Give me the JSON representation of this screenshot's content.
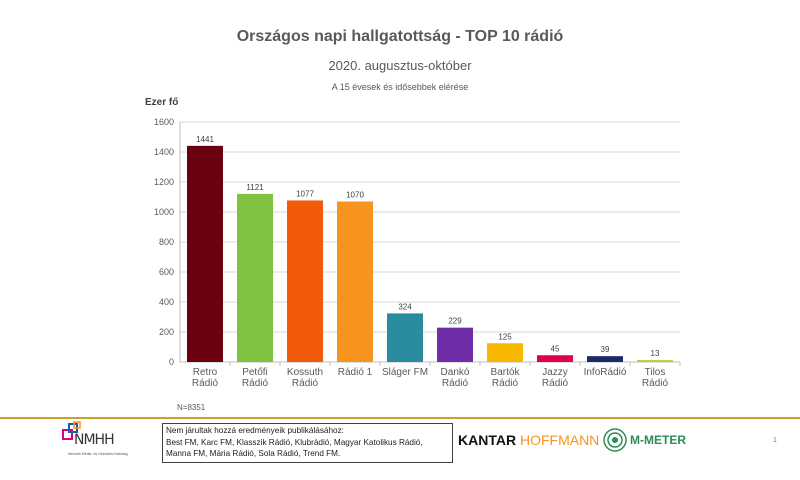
{
  "header": {
    "title": "Országos napi hallgatottság - TOP 10 rádió",
    "subtitle": "2020. augusztus-október",
    "note": "A 15 évesek és idősebbek elérése"
  },
  "chart_data": {
    "type": "bar",
    "title": "Országos napi hallgatottság - TOP 10 rádió",
    "subtitle": "2020. augusztus-október",
    "ylabel": "Ezer fő",
    "ylim": [
      0,
      1600
    ],
    "yticks": [
      "0",
      "200",
      "400",
      "600",
      "800",
      "1000",
      "1200",
      "1400",
      "1600"
    ],
    "grid": true,
    "categories": [
      [
        "Retro",
        "Rádió"
      ],
      [
        "Petőfi",
        "Rádió"
      ],
      [
        "Kossuth",
        "Rádió"
      ],
      [
        "Rádió 1"
      ],
      [
        "Sláger FM"
      ],
      [
        "Dankó",
        "Rádió"
      ],
      [
        "Bartók",
        "Rádió"
      ],
      [
        "Jazzy",
        "Rádió"
      ],
      [
        "InfoRádió"
      ],
      [
        "Tilos",
        "Rádió"
      ]
    ],
    "values": [
      1441,
      1121,
      1077,
      1070,
      324,
      229,
      125,
      45,
      39,
      13
    ],
    "value_labels": [
      "1441",
      "1121",
      "1077",
      "1070",
      "324",
      "229",
      "125",
      "45",
      "39",
      "13"
    ],
    "colors": [
      "#6b0010",
      "#7fc241",
      "#f05a0a",
      "#f7941d",
      "#2a8a9e",
      "#6f2da8",
      "#f9b800",
      "#e0004d",
      "#1c2a6b",
      "#b5d334"
    ]
  },
  "sample_note": "N=8351",
  "footer": {
    "box_lines": [
      "Nem járultak hozzá eredményeik publikálásához:",
      "Best FM, Karc FM, Klasszik Rádió, Klubrádió, Magyar Katolikus Rádió,",
      "Manna FM, Mária Rádió, Sola Rádió, Trend FM."
    ],
    "nmhh_logo_text": "NMHH",
    "nmhh_subtext": "Nemzeti Média- és Hírközlési Hatóság",
    "kantar_text_1": "KANTAR",
    "kantar_text_2": "HOFFMANN",
    "mmeter_text": "M-METER",
    "page_number": "1"
  },
  "colors": {
    "gold_line": "#c9a227",
    "grid": "#d9d9d9",
    "axis": "#bfbfbf"
  }
}
